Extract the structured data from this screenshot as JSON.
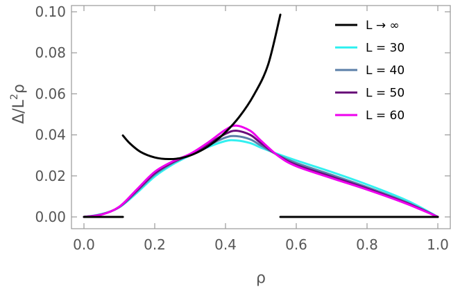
{
  "chart_data": {
    "type": "line",
    "title": "",
    "xlabel": "ρ",
    "ylabel": "Δ/L²ρ",
    "xlim": [
      0.0,
      1.0
    ],
    "ylim": [
      0.0,
      0.1
    ],
    "x_ticks": [
      "0.0",
      "0.2",
      "0.4",
      "0.6",
      "0.8",
      "1.0"
    ],
    "y_ticks": [
      "0.00",
      "0.02",
      "0.04",
      "0.06",
      "0.08",
      "0.10"
    ],
    "grid": false,
    "legend_position": "top-right",
    "series": [
      {
        "name": "L → ∞",
        "color": "#000000",
        "segments": [
          [
            [
              0.0,
              0.0
            ],
            [
              0.11,
              0.0
            ]
          ],
          [
            [
              0.11,
              0.0397
            ],
            [
              0.13,
              0.0358
            ],
            [
              0.16,
              0.0317
            ],
            [
              0.2,
              0.029
            ],
            [
              0.24,
              0.0282
            ],
            [
              0.28,
              0.0289
            ],
            [
              0.32,
              0.0314
            ],
            [
              0.36,
              0.0355
            ],
            [
              0.4,
              0.0413
            ],
            [
              0.44,
              0.049
            ],
            [
              0.48,
              0.0594
            ],
            [
              0.52,
              0.074
            ],
            [
              0.555,
              0.0986
            ]
          ],
          [
            [
              0.555,
              0.0
            ],
            [
              1.0,
              0.0
            ]
          ]
        ]
      },
      {
        "name": "L = 30",
        "color": "#33f0f0",
        "points": [
          [
            0.0,
            0.0
          ],
          [
            0.05,
            0.0014
          ],
          [
            0.1,
            0.0047
          ],
          [
            0.15,
            0.0118
          ],
          [
            0.2,
            0.0197
          ],
          [
            0.25,
            0.0255
          ],
          [
            0.3,
            0.03
          ],
          [
            0.35,
            0.034
          ],
          [
            0.4,
            0.037
          ],
          [
            0.43,
            0.0373
          ],
          [
            0.47,
            0.036
          ],
          [
            0.5,
            0.0338
          ],
          [
            0.55,
            0.0305
          ],
          [
            0.6,
            0.0275
          ],
          [
            0.7,
            0.0219
          ],
          [
            0.8,
            0.0158
          ],
          [
            0.9,
            0.009
          ],
          [
            0.95,
            0.0048
          ],
          [
            1.0,
            0.0
          ]
        ]
      },
      {
        "name": "L = 40",
        "color": "#5b7fa8",
        "points": [
          [
            0.0,
            0.0
          ],
          [
            0.05,
            0.0013
          ],
          [
            0.1,
            0.0048
          ],
          [
            0.15,
            0.0125
          ],
          [
            0.2,
            0.0207
          ],
          [
            0.25,
            0.0262
          ],
          [
            0.3,
            0.0303
          ],
          [
            0.35,
            0.0348
          ],
          [
            0.4,
            0.0387
          ],
          [
            0.43,
            0.0394
          ],
          [
            0.47,
            0.0378
          ],
          [
            0.5,
            0.0348
          ],
          [
            0.55,
            0.03
          ],
          [
            0.6,
            0.0263
          ],
          [
            0.7,
            0.0205
          ],
          [
            0.8,
            0.0145
          ],
          [
            0.9,
            0.008
          ],
          [
            0.95,
            0.0042
          ],
          [
            1.0,
            0.0
          ]
        ]
      },
      {
        "name": "L = 50",
        "color": "#6a0a7a",
        "points": [
          [
            0.0,
            0.0
          ],
          [
            0.05,
            0.0012
          ],
          [
            0.1,
            0.0049
          ],
          [
            0.15,
            0.013
          ],
          [
            0.2,
            0.0213
          ],
          [
            0.25,
            0.0266
          ],
          [
            0.3,
            0.0305
          ],
          [
            0.35,
            0.0355
          ],
          [
            0.4,
            0.0405
          ],
          [
            0.43,
            0.042
          ],
          [
            0.47,
            0.04
          ],
          [
            0.5,
            0.036
          ],
          [
            0.55,
            0.0298
          ],
          [
            0.6,
            0.0254
          ],
          [
            0.7,
            0.0196
          ],
          [
            0.8,
            0.0139
          ],
          [
            0.9,
            0.0076
          ],
          [
            0.95,
            0.004
          ],
          [
            1.0,
            0.0
          ]
        ]
      },
      {
        "name": "L = 60",
        "color": "#ee00ee",
        "points": [
          [
            0.0,
            0.0
          ],
          [
            0.05,
            0.0011
          ],
          [
            0.1,
            0.005
          ],
          [
            0.15,
            0.0135
          ],
          [
            0.2,
            0.022
          ],
          [
            0.25,
            0.027
          ],
          [
            0.3,
            0.0307
          ],
          [
            0.35,
            0.0362
          ],
          [
            0.4,
            0.0425
          ],
          [
            0.43,
            0.0445
          ],
          [
            0.47,
            0.042
          ],
          [
            0.5,
            0.0372
          ],
          [
            0.55,
            0.0296
          ],
          [
            0.6,
            0.0247
          ],
          [
            0.7,
            0.0189
          ],
          [
            0.8,
            0.0133
          ],
          [
            0.9,
            0.0072
          ],
          [
            0.95,
            0.0037
          ],
          [
            1.0,
            0.0
          ]
        ]
      }
    ]
  }
}
